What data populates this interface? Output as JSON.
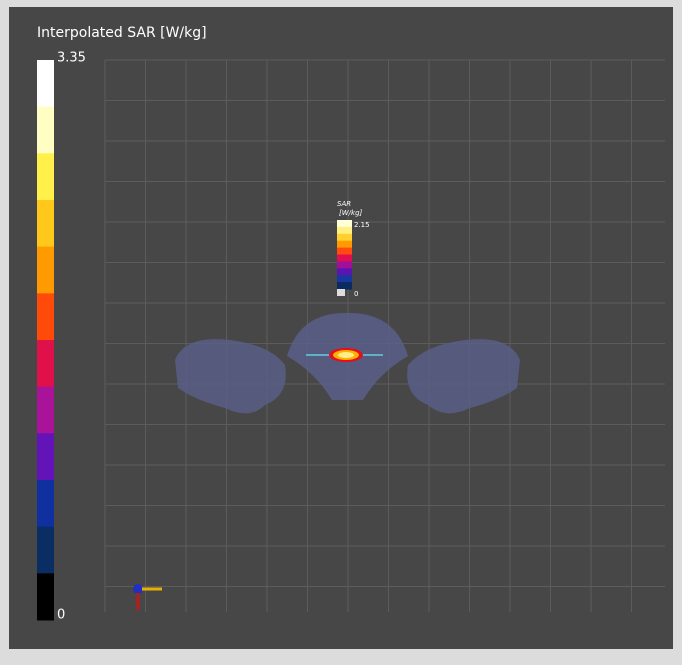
{
  "colorbar": {
    "title": "Interpolated SAR [W/kg]",
    "max_label": "3.35",
    "min_label": "0",
    "colors": [
      "#ffffff",
      "#ffffc4",
      "#fff04a",
      "#ffc81a",
      "#ff9a00",
      "#ff4a0a",
      "#e0104a",
      "#a8139a",
      "#6214b8",
      "#1030a0",
      "#0a2e64",
      "#000000"
    ]
  },
  "inset_colorbar": {
    "title": "SAR",
    "unit": "[W/kg]",
    "max_label": "2.15",
    "min_label": "0",
    "colors": [
      "#ffffd8",
      "#fff080",
      "#ffd030",
      "#ff9a00",
      "#ff4a10",
      "#e01050",
      "#a0109a",
      "#5a14b0",
      "#1838a0",
      "#0a2a60"
    ]
  }
}
